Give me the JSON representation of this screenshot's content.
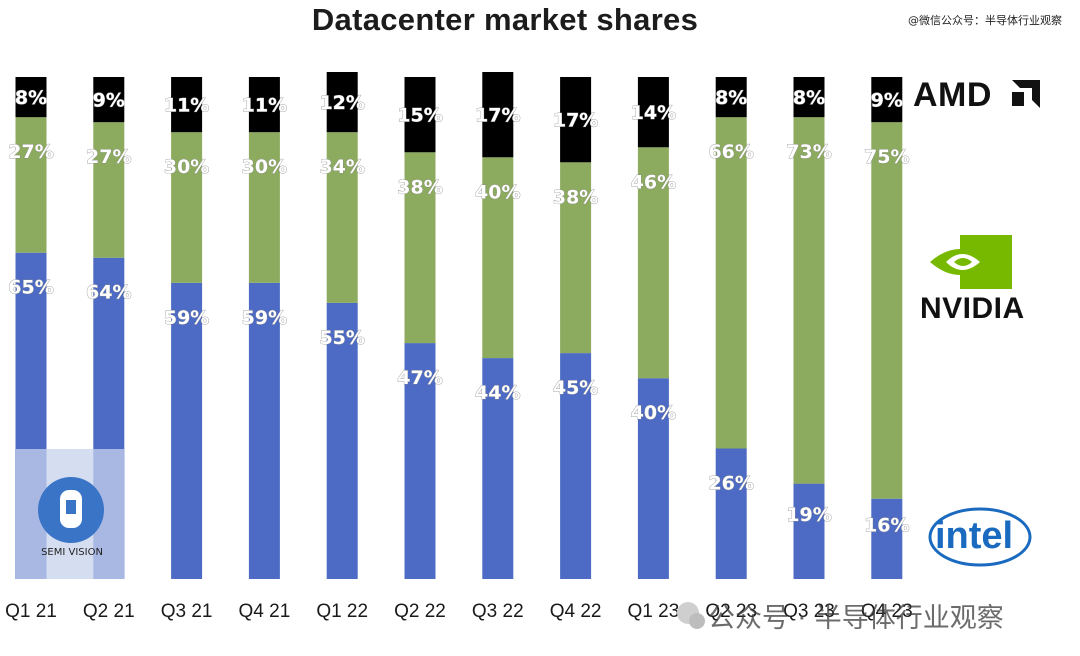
{
  "chart_data": {
    "type": "bar",
    "stacked": true,
    "title": "Datacenter market shares",
    "categories": [
      "Q1 21",
      "Q2 21",
      "Q3 21",
      "Q4 21",
      "Q1 22",
      "Q2 22",
      "Q3 22",
      "Q4 22",
      "Q1 23",
      "Q2 23",
      "Q3 23",
      "Q4 23"
    ],
    "series": [
      {
        "name": "Intel",
        "color": "#4d6bc4",
        "values": [
          65,
          64,
          59,
          59,
          55,
          47,
          44,
          45,
          40,
          26,
          19,
          16
        ]
      },
      {
        "name": "NVIDIA",
        "color": "#8cab5e",
        "values": [
          27,
          27,
          30,
          30,
          34,
          38,
          40,
          38,
          46,
          66,
          73,
          75
        ]
      },
      {
        "name": "AMD",
        "color": "#000000",
        "values": [
          8,
          9,
          11,
          11,
          12,
          15,
          17,
          17,
          14,
          8,
          8,
          9
        ]
      }
    ],
    "value_suffix": "%",
    "ylim": [
      0,
      100
    ],
    "xlabel": "",
    "ylabel": "",
    "legend": "logos on right"
  },
  "legend_logos": {
    "amd": "AMD",
    "nvidia": "NVIDIA",
    "intel": "intel"
  },
  "badge": {
    "text": "SEMI VISION"
  },
  "watermarks": {
    "top": "@微信公众号：半导体行业观察",
    "bottom": "公众号 · 半导体行业观察"
  }
}
